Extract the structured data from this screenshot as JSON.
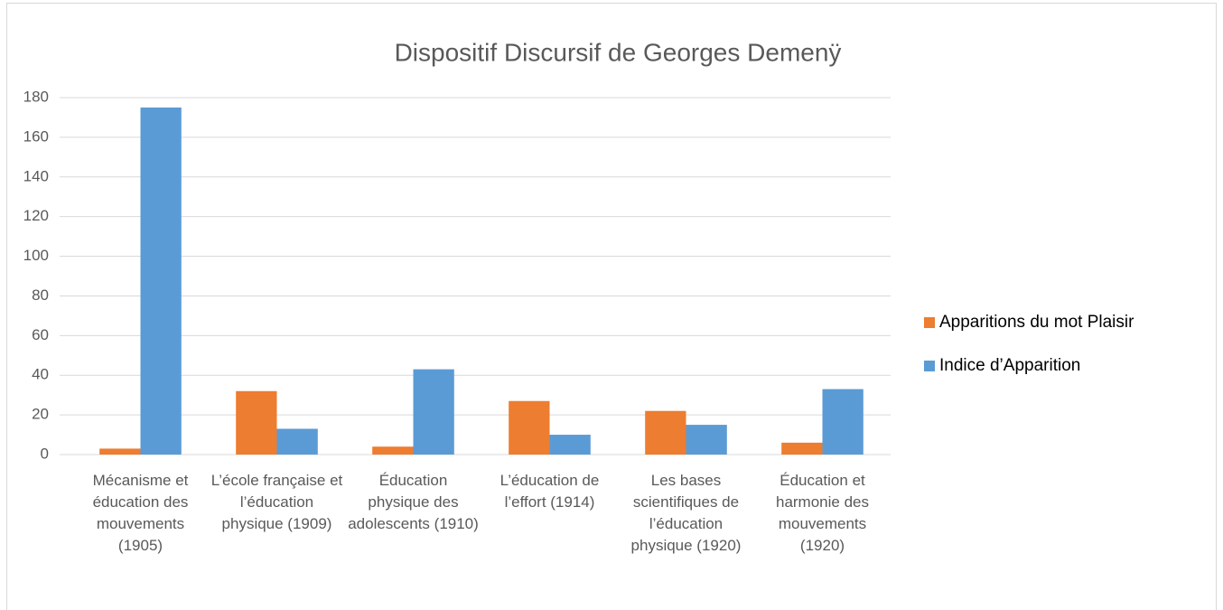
{
  "chart_data": {
    "type": "bar",
    "title": "Dispositif Discursif de Georges Demenÿ",
    "categories": [
      "Mécanisme et éducation des mouvements (1905)",
      "L’école française et l’éducation physique (1909)",
      "Éducation physique des adolescents (1910)",
      "L’éducation de l’effort (1914)",
      "Les bases scientifiques de l’éducation physique (1920)",
      "Éducation et harmonie des mouvements (1920)"
    ],
    "series": [
      {
        "name": "Apparitions du mot Plaisir",
        "color": "#ed7d31",
        "values": [
          3,
          32,
          4,
          27,
          22,
          6
        ]
      },
      {
        "name": "Indice d’Apparition",
        "color": "#5b9bd5",
        "values": [
          175,
          13,
          43,
          10,
          15,
          33
        ]
      }
    ],
    "ylim": [
      0,
      180
    ],
    "yticks": [
      0,
      20,
      40,
      60,
      80,
      100,
      120,
      140,
      160,
      180
    ],
    "grid": true,
    "legend": "right"
  }
}
